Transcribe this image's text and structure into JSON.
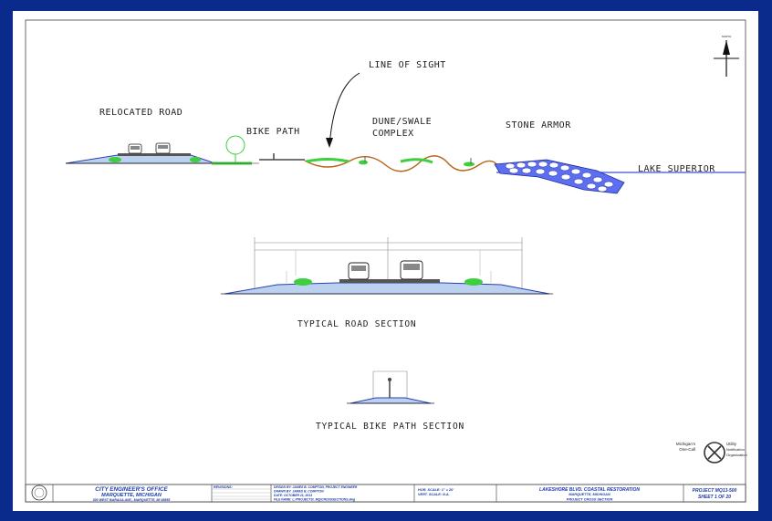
{
  "labels": {
    "line_of_sight": "LINE OF SIGHT",
    "relocated_road": "RELOCATED ROAD",
    "bike_path": "BIKE PATH",
    "dune_swale_line1": "DUNE/SWALE",
    "dune_swale_line2": "COMPLEX",
    "stone_armor": "STONE ARMOR",
    "lake_superior": "LAKE SUPERIOR",
    "typical_road_section": "TYPICAL ROAD SECTION",
    "typical_bike_path_section": "TYPICAL BIKE PATH SECTION"
  },
  "north_arrow": {
    "label": "NORTH"
  },
  "title_block": {
    "office_name": "CITY ENGINEER'S OFFICE",
    "office_city": "MARQUETTE, MICHIGAN",
    "office_address": "300 WEST BARAGA AVE., MARQUETTE, MI 49855",
    "revisions_label": "REVISIONS:",
    "design_by": "DESIGN BY: JAMES B. COMPTON, PROJECT ENGINEER",
    "drawn_by": "DRAWN BY: JAMES B. COMPTON",
    "date": "DATE: OCTOBER 21, 2013",
    "file_name": "FILE NAME: L:/PROJECTS/_MQ/CROSSSECTIONS.dwg",
    "hor_scale": "HOR. SCALE: 1\" = 20'",
    "vert_scale": "VERT. SCALE: N.A.",
    "project_title": "LAKESHORE BLVD. COASTAL RESTORATION",
    "project_city": "MARQUETTE, MICHIGAN",
    "drawing_title": "PROJECT CROSS SECTION",
    "project_no": "PROJECT MQ13-500",
    "sheet_no": "SHEET 1 OF 20"
  },
  "miss_dig": {
    "line1": "Michigan's",
    "line2": "One-Call",
    "line3": "Utility",
    "line4": "Notification",
    "line5": "Organization"
  }
}
